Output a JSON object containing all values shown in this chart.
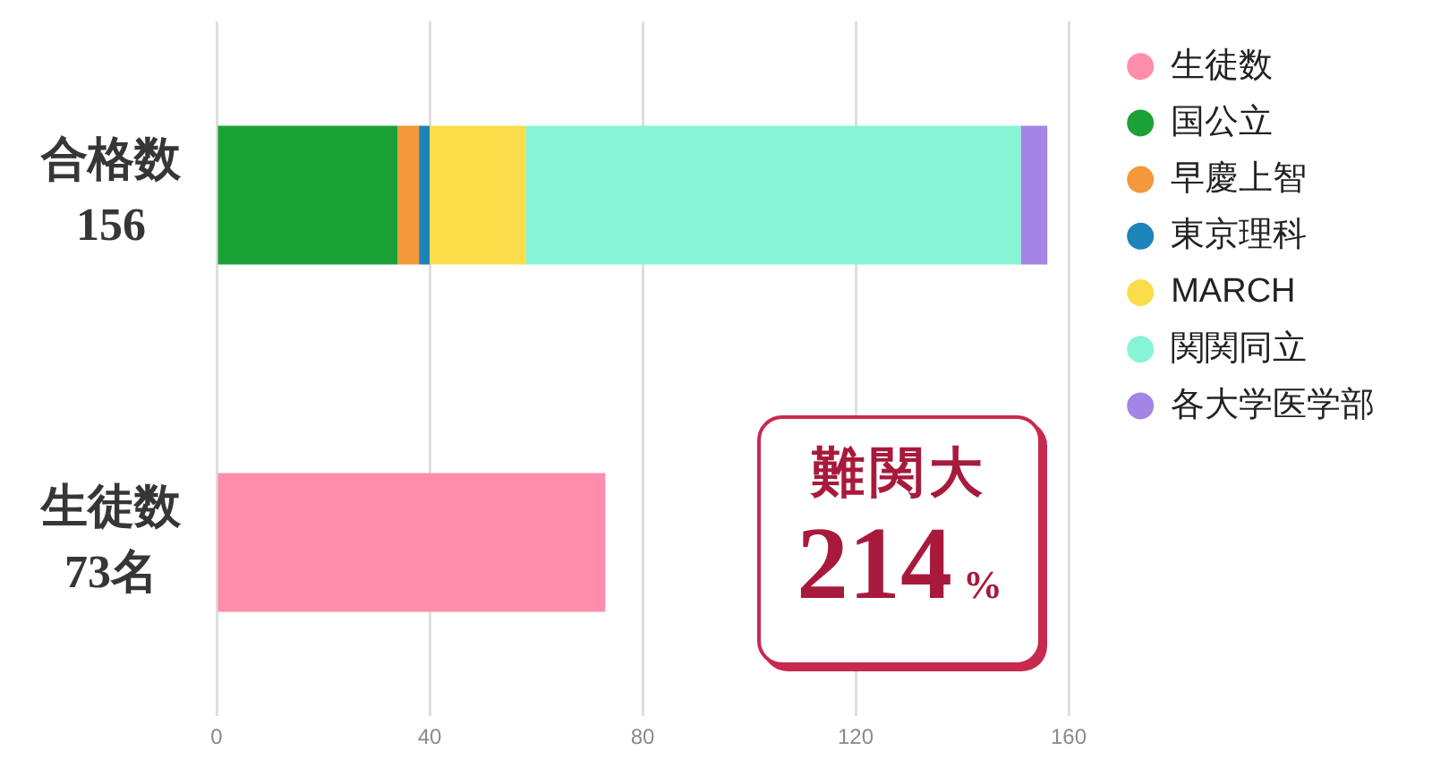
{
  "chart_data": {
    "type": "bar",
    "orientation": "horizontal",
    "stacked": true,
    "categories": [
      "合格数\n156",
      "生徒数\n73名"
    ],
    "series": [
      {
        "name": "生徒数",
        "color": "#ff8dab",
        "values": [
          null,
          73
        ]
      },
      {
        "name": "国公立",
        "color": "#1ba236",
        "values": [
          34,
          null
        ]
      },
      {
        "name": "早慶上智",
        "color": "#f5973b",
        "values": [
          4,
          null
        ]
      },
      {
        "name": "東京理科",
        "color": "#1d83bb",
        "values": [
          2,
          null
        ]
      },
      {
        "name": "MARCH",
        "color": "#fcdd49",
        "values": [
          18,
          null
        ]
      },
      {
        "name": "関関同立",
        "color": "#87f5d5",
        "values": [
          93,
          null
        ]
      },
      {
        "name": "各大学医学部",
        "color": "#a385e3",
        "values": [
          5,
          null
        ]
      }
    ],
    "xlim": [
      0,
      160
    ],
    "xticks": [
      0,
      40,
      80,
      120,
      160
    ],
    "grid": "x",
    "legend": "top right",
    "annotations": [
      "難関大",
      "214%"
    ]
  }
}
